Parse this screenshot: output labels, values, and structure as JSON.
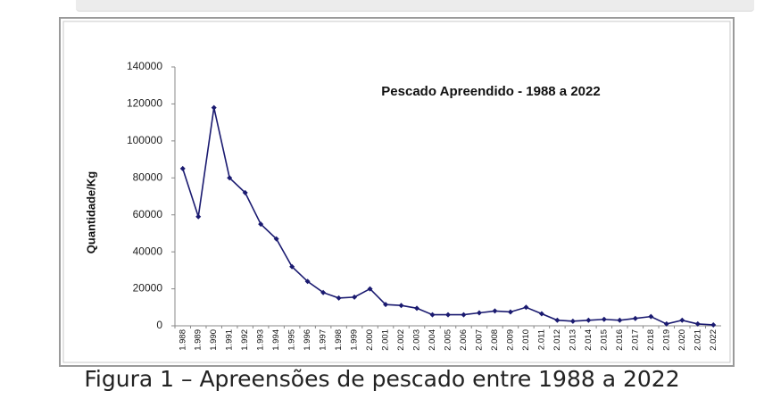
{
  "chart_data": {
    "type": "line",
    "title": "Pescado Apreendido - 1988 a 2022",
    "y_label": "Quantidade/Kg",
    "categories": [
      "1.988",
      "1.989",
      "1.990",
      "1.991",
      "1.992",
      "1.993",
      "1.994",
      "1.995",
      "1.996",
      "1.997",
      "1.998",
      "1.999",
      "2.000",
      "2.001",
      "2.002",
      "2.003",
      "2.004",
      "2.005",
      "2.006",
      "2.007",
      "2.008",
      "2.009",
      "2.010",
      "2.011",
      "2.012",
      "2.013",
      "2.014",
      "2.015",
      "2.016",
      "2.017",
      "2.018",
      "2.019",
      "2.020",
      "2.021",
      "2.022"
    ],
    "values": [
      85000,
      59000,
      118000,
      80000,
      72000,
      55000,
      47000,
      32000,
      24000,
      18000,
      15000,
      15500,
      20000,
      11500,
      11000,
      9500,
      6000,
      6000,
      6000,
      7000,
      8000,
      7500,
      10000,
      6500,
      3000,
      2500,
      3000,
      3500,
      3000,
      4000,
      5000,
      1000,
      3000,
      1000,
      500
    ],
    "color": "#1a1a70",
    "ylim": [
      0,
      140000
    ],
    "yticks": [
      0,
      20000,
      40000,
      60000,
      80000,
      100000,
      120000,
      140000
    ]
  },
  "caption": "Figura 1 – Apreensões de pescado entre 1988 a 2022"
}
